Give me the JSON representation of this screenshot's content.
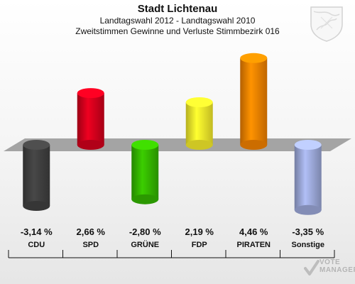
{
  "header": {
    "title": "Stadt Lichtenau",
    "subtitle": "Landtagswahl 2012 - Landtagswahl 2010",
    "subtitle2": "Zweitstimmen Gewinne und Verluste Stimmbezirk 016"
  },
  "chart_data": {
    "type": "bar",
    "title": "Stadt Lichtenau",
    "categories": [
      "CDU",
      "SPD",
      "GRÜNE",
      "FDP",
      "PIRATEN",
      "Sonstige"
    ],
    "values": [
      -3.14,
      2.66,
      -2.8,
      2.19,
      4.46,
      -3.35
    ],
    "value_labels": [
      "-3,14 %",
      "2,66 %",
      "-2,80 %",
      "2,19 %",
      "4,46 %",
      "-3,35 %"
    ],
    "colors": [
      "#3f3f3f",
      "#d0001c",
      "#33b300",
      "#f2e92a",
      "#f08000",
      "#9aa6d6"
    ],
    "ylim": [
      -3.5,
      5.0
    ],
    "grid": false,
    "legend": "none"
  },
  "watermark": {
    "line1": "VOTE",
    "line2": "MANAGER"
  }
}
